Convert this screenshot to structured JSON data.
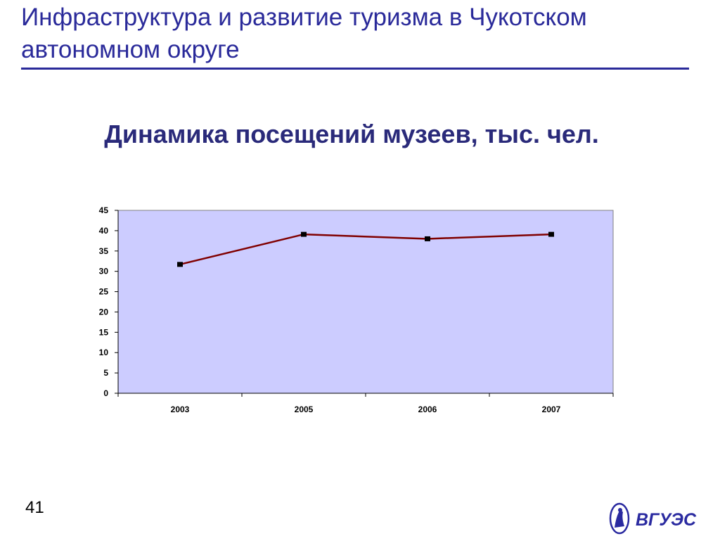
{
  "slide": {
    "title": "Инфраструктура и развитие туризма в Чукотском автономном округе",
    "page_number": "41",
    "logo_text": "ВГУЭС"
  },
  "chart_data": {
    "type": "line",
    "title": "Динамика посещений музеев, тыс. чел.",
    "xlabel": "",
    "ylabel": "",
    "categories": [
      "2003",
      "2005",
      "2006",
      "2007"
    ],
    "series": [
      {
        "values": [
          31.7,
          39.1,
          38.0,
          39.1
        ]
      }
    ],
    "ylim": [
      0,
      45
    ],
    "yticks": [
      0,
      5,
      10,
      15,
      20,
      25,
      30,
      35,
      40,
      45
    ],
    "grid": false,
    "legend": "none",
    "colors": {
      "plot_background": "#ccccff",
      "line": "#800000",
      "marker": "#000000",
      "title": "#2a2a7a",
      "slide_title": "#2a2a9a"
    }
  }
}
